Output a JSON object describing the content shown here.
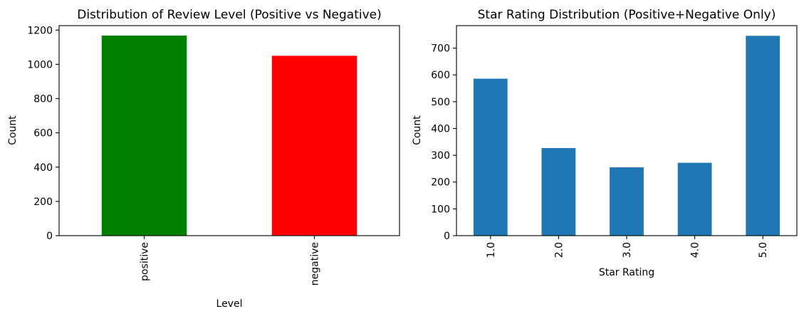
{
  "chart_data": [
    {
      "type": "bar",
      "title": "Distribution of Review Level (Positive vs Negative)",
      "xlabel": "Level",
      "ylabel": "Count",
      "categories": [
        "positive",
        "negative"
      ],
      "values": [
        1168,
        1050
      ],
      "colors": [
        "#008000",
        "#ff0000"
      ],
      "ylim": [
        0,
        1226
      ],
      "yticks": [
        0,
        200,
        400,
        600,
        800,
        1000,
        1200
      ],
      "grid": false
    },
    {
      "type": "bar",
      "title": "Star Rating Distribution (Positive+Negative Only)",
      "xlabel": "Star Rating",
      "ylabel": "Count",
      "categories": [
        "1.0",
        "2.0",
        "3.0",
        "4.0",
        "5.0"
      ],
      "values": [
        586,
        327,
        255,
        272,
        746
      ],
      "colors": [
        "#1f77b4",
        "#1f77b4",
        "#1f77b4",
        "#1f77b4",
        "#1f77b4"
      ],
      "ylim": [
        0,
        784
      ],
      "yticks": [
        0,
        100,
        200,
        300,
        400,
        500,
        600,
        700
      ],
      "grid": false
    }
  ]
}
